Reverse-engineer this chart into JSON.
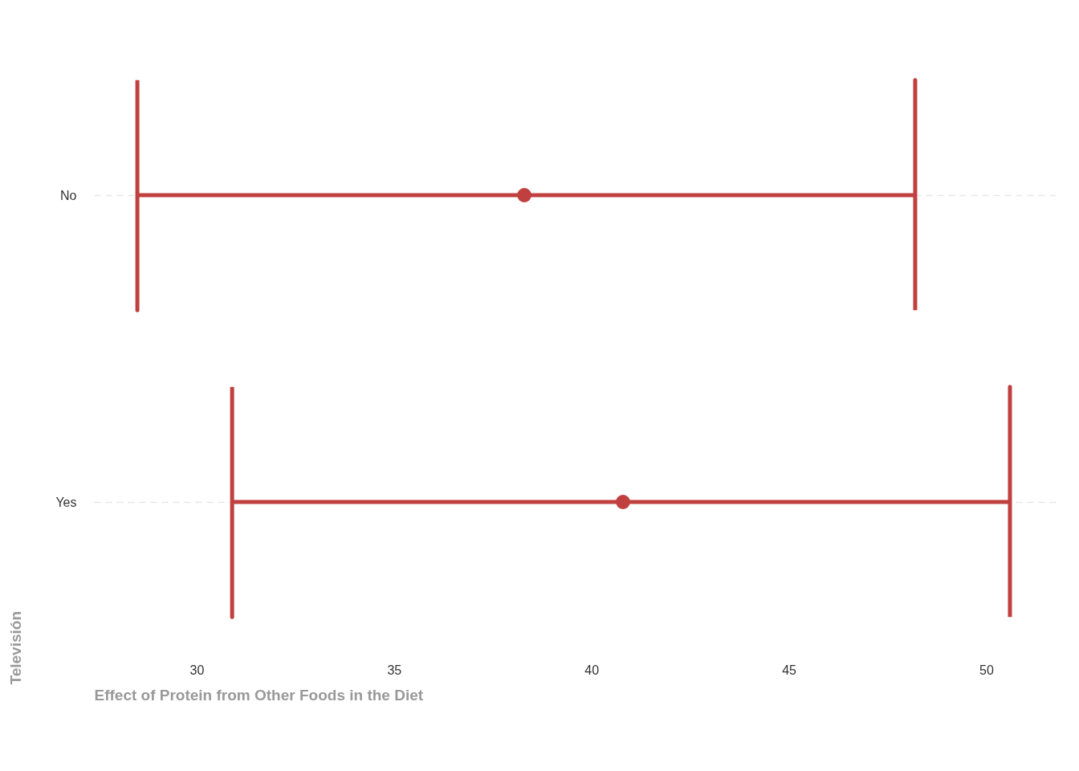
{
  "chart_data": {
    "type": "scatter",
    "orientation": "horizontal",
    "xlabel": "Effect of Protein from Other Foods in the Diet",
    "ylabel": "Televisión",
    "categories": [
      "No",
      "Yes"
    ],
    "values": [
      38.3,
      40.8
    ],
    "errors": [
      [
        28.5,
        48.2
      ],
      [
        30.9,
        50.6
      ]
    ],
    "color": "#c0403f",
    "marker": "circle",
    "xlim": [
      27.4,
      51.8
    ],
    "xticks": [
      30,
      35,
      40,
      45,
      50
    ],
    "grid": "y"
  }
}
